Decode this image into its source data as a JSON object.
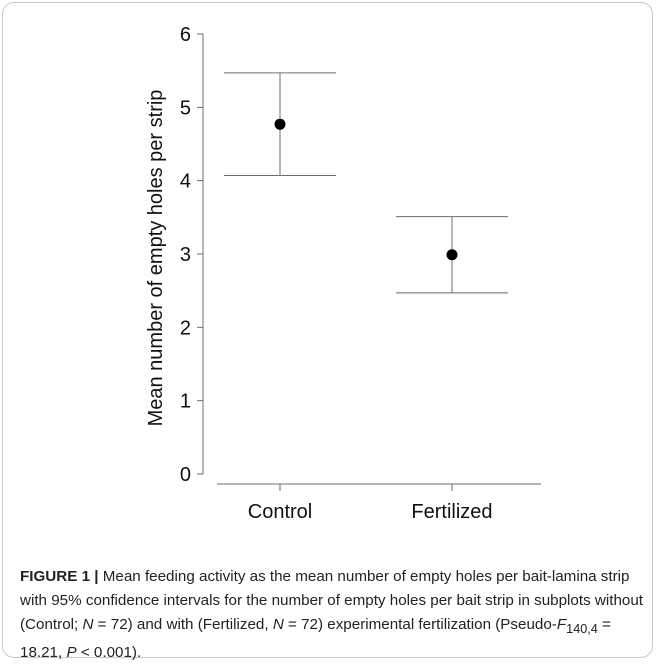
{
  "chart_data": {
    "type": "scatter",
    "categories": [
      "Control",
      "Fertilized"
    ],
    "series": [
      {
        "values": [
          4.77,
          2.99
        ],
        "ci_lower": [
          4.07,
          2.47
        ],
        "ci_upper": [
          5.47,
          3.51
        ]
      }
    ],
    "ylabel": "Mean number of empty holes per strip",
    "xlabel": "",
    "yticks": [
      "0",
      "1",
      "2",
      "3",
      "4",
      "5",
      "6"
    ],
    "ylim": [
      0,
      6
    ],
    "grid": false
  },
  "caption": {
    "label": "FIGURE 1 |",
    "text_1": " Mean feeding activity as the mean number of empty holes per bait-lamina strip with 95% confidence intervals for the number of empty holes per bait strip in subplots without (Control; ",
    "n1_symbol": "N",
    "n1_value": " = 72) and with (Fertilized, ",
    "n2_symbol": "N",
    "n2_value": " = 72) experimental fertilization (Pseudo-",
    "stat_symbol": "F",
    "stat_sub": "140,4",
    "stat_value": " = 18.21, ",
    "p_symbol": "P",
    "p_value": " < 0.001)."
  },
  "colors": {
    "axis": "#6e6e6e",
    "marker": "#000000",
    "frame": "#c9c9c9",
    "text": "#222222"
  }
}
